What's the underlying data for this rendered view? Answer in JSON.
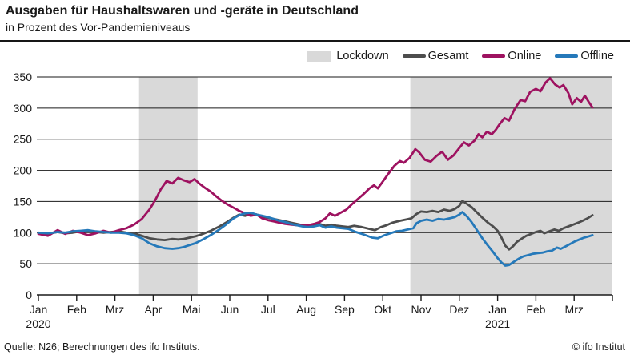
{
  "report": {
    "title": "Ausgaben für Haushaltswaren und -geräte in Deutschland",
    "subtitle": "in Prozent des Vor-Pandemieniveaus",
    "source_left": "Quelle: N26; Berechnungen des ifo Instituts.",
    "source_right": "© ifo Institut"
  },
  "chart_data": {
    "type": "line",
    "title": "Ausgaben für Haushaltswaren und -geräte in Deutschland",
    "ylabel": "Prozent des Vor-Pandemieniveaus",
    "x_unit": "months_since_Jan_2020",
    "x_range_months": [
      0,
      15
    ],
    "grid": "horizontal",
    "legend_position": "top",
    "x_axis": {
      "months": [
        "Jan",
        "Feb",
        "Mrz",
        "Apr",
        "Mai",
        "Jun",
        "Jul",
        "Aug",
        "Sep",
        "Okt",
        "Nov",
        "Dez",
        "Jan",
        "Feb",
        "Mrz"
      ],
      "years": [
        {
          "label": "2020",
          "month_index": 0
        },
        {
          "label": "2021",
          "month_index": 12
        }
      ]
    },
    "y_axis": {
      "min": 0,
      "max": 350,
      "ticks": [
        0,
        50,
        100,
        150,
        200,
        250,
        300,
        350
      ]
    },
    "lockdown": {
      "label": "Lockdown",
      "color": "#d9d9d9",
      "bands": [
        [
          2.63,
          4.16
        ],
        [
          9.72,
          15
        ]
      ]
    },
    "series": [
      {
        "name": "Gesamt",
        "color": "#4d4d4d",
        "points": [
          [
            0.0,
            99
          ],
          [
            0.25,
            98
          ],
          [
            0.5,
            101
          ],
          [
            0.7,
            99
          ],
          [
            0.9,
            100
          ],
          [
            1.1,
            102
          ],
          [
            1.3,
            103
          ],
          [
            1.5,
            101
          ],
          [
            1.7,
            100
          ],
          [
            1.9,
            101
          ],
          [
            2.1,
            102
          ],
          [
            2.3,
            100
          ],
          [
            2.5,
            99
          ],
          [
            2.7,
            95
          ],
          [
            2.9,
            91
          ],
          [
            3.1,
            89
          ],
          [
            3.3,
            88
          ],
          [
            3.5,
            90
          ],
          [
            3.65,
            89
          ],
          [
            3.8,
            90
          ],
          [
            3.95,
            92
          ],
          [
            4.1,
            94
          ],
          [
            4.3,
            98
          ],
          [
            4.5,
            103
          ],
          [
            4.7,
            109
          ],
          [
            4.9,
            116
          ],
          [
            5.1,
            124
          ],
          [
            5.25,
            129
          ],
          [
            5.4,
            127
          ],
          [
            5.55,
            131
          ],
          [
            5.7,
            129
          ],
          [
            5.85,
            126
          ],
          [
            6.0,
            124
          ],
          [
            6.15,
            122
          ],
          [
            6.3,
            120
          ],
          [
            6.45,
            118
          ],
          [
            6.6,
            116
          ],
          [
            6.75,
            114
          ],
          [
            6.9,
            112
          ],
          [
            7.05,
            111
          ],
          [
            7.2,
            112
          ],
          [
            7.35,
            114
          ],
          [
            7.5,
            111
          ],
          [
            7.65,
            113
          ],
          [
            7.8,
            111
          ],
          [
            7.95,
            110
          ],
          [
            8.1,
            109
          ],
          [
            8.25,
            111
          ],
          [
            8.45,
            109
          ],
          [
            8.65,
            106
          ],
          [
            8.8,
            104
          ],
          [
            8.95,
            109
          ],
          [
            9.1,
            112
          ],
          [
            9.25,
            116
          ],
          [
            9.45,
            119
          ],
          [
            9.6,
            121
          ],
          [
            9.75,
            123
          ],
          [
            9.88,
            130
          ],
          [
            10.0,
            134
          ],
          [
            10.15,
            133
          ],
          [
            10.3,
            135
          ],
          [
            10.45,
            133
          ],
          [
            10.6,
            137
          ],
          [
            10.75,
            135
          ],
          [
            10.88,
            138
          ],
          [
            11.0,
            143
          ],
          [
            11.08,
            151
          ],
          [
            11.2,
            146
          ],
          [
            11.32,
            141
          ],
          [
            11.45,
            133
          ],
          [
            11.6,
            124
          ],
          [
            11.75,
            116
          ],
          [
            11.88,
            110
          ],
          [
            12.0,
            103
          ],
          [
            12.1,
            92
          ],
          [
            12.2,
            79
          ],
          [
            12.3,
            73
          ],
          [
            12.4,
            78
          ],
          [
            12.5,
            85
          ],
          [
            12.62,
            90
          ],
          [
            12.75,
            95
          ],
          [
            12.88,
            98
          ],
          [
            13.0,
            101
          ],
          [
            13.12,
            103
          ],
          [
            13.22,
            99
          ],
          [
            13.35,
            102
          ],
          [
            13.48,
            105
          ],
          [
            13.6,
            103
          ],
          [
            13.72,
            107
          ],
          [
            13.85,
            110
          ],
          [
            13.98,
            113
          ],
          [
            14.1,
            116
          ],
          [
            14.22,
            119
          ],
          [
            14.35,
            123
          ],
          [
            14.48,
            128
          ]
        ]
      },
      {
        "name": "Online",
        "color": "#9e1260",
        "points": [
          [
            0.0,
            98
          ],
          [
            0.25,
            95
          ],
          [
            0.5,
            104
          ],
          [
            0.7,
            98
          ],
          [
            0.9,
            103
          ],
          [
            1.1,
            100
          ],
          [
            1.3,
            96
          ],
          [
            1.5,
            99
          ],
          [
            1.7,
            103
          ],
          [
            1.9,
            100
          ],
          [
            2.1,
            104
          ],
          [
            2.3,
            107
          ],
          [
            2.5,
            113
          ],
          [
            2.7,
            122
          ],
          [
            2.9,
            137
          ],
          [
            3.05,
            152
          ],
          [
            3.2,
            170
          ],
          [
            3.35,
            183
          ],
          [
            3.5,
            179
          ],
          [
            3.65,
            188
          ],
          [
            3.8,
            184
          ],
          [
            3.95,
            181
          ],
          [
            4.08,
            186
          ],
          [
            4.2,
            179
          ],
          [
            4.35,
            172
          ],
          [
            4.5,
            166
          ],
          [
            4.65,
            158
          ],
          [
            4.8,
            151
          ],
          [
            4.95,
            145
          ],
          [
            5.1,
            140
          ],
          [
            5.25,
            135
          ],
          [
            5.4,
            131
          ],
          [
            5.55,
            127
          ],
          [
            5.7,
            129
          ],
          [
            5.85,
            123
          ],
          [
            6.0,
            120
          ],
          [
            6.15,
            118
          ],
          [
            6.3,
            116
          ],
          [
            6.45,
            114
          ],
          [
            6.6,
            113
          ],
          [
            6.75,
            112
          ],
          [
            6.9,
            111
          ],
          [
            7.05,
            112
          ],
          [
            7.2,
            114
          ],
          [
            7.35,
            117
          ],
          [
            7.5,
            123
          ],
          [
            7.62,
            131
          ],
          [
            7.75,
            127
          ],
          [
            7.9,
            132
          ],
          [
            8.05,
            137
          ],
          [
            8.2,
            146
          ],
          [
            8.35,
            154
          ],
          [
            8.5,
            162
          ],
          [
            8.65,
            171
          ],
          [
            8.77,
            176
          ],
          [
            8.87,
            171
          ],
          [
            9.0,
            182
          ],
          [
            9.15,
            195
          ],
          [
            9.3,
            207
          ],
          [
            9.45,
            215
          ],
          [
            9.55,
            212
          ],
          [
            9.7,
            220
          ],
          [
            9.85,
            234
          ],
          [
            9.95,
            229
          ],
          [
            10.1,
            217
          ],
          [
            10.25,
            214
          ],
          [
            10.4,
            223
          ],
          [
            10.55,
            230
          ],
          [
            10.7,
            217
          ],
          [
            10.85,
            224
          ],
          [
            11.0,
            236
          ],
          [
            11.12,
            245
          ],
          [
            11.25,
            240
          ],
          [
            11.4,
            248
          ],
          [
            11.5,
            258
          ],
          [
            11.6,
            253
          ],
          [
            11.72,
            262
          ],
          [
            11.85,
            258
          ],
          [
            11.95,
            265
          ],
          [
            12.05,
            274
          ],
          [
            12.18,
            284
          ],
          [
            12.3,
            280
          ],
          [
            12.45,
            299
          ],
          [
            12.6,
            313
          ],
          [
            12.72,
            311
          ],
          [
            12.85,
            326
          ],
          [
            13.0,
            331
          ],
          [
            13.12,
            327
          ],
          [
            13.25,
            341
          ],
          [
            13.37,
            348
          ],
          [
            13.5,
            338
          ],
          [
            13.62,
            333
          ],
          [
            13.72,
            337
          ],
          [
            13.85,
            324
          ],
          [
            13.95,
            306
          ],
          [
            14.07,
            316
          ],
          [
            14.18,
            310
          ],
          [
            14.28,
            320
          ],
          [
            14.38,
            310
          ],
          [
            14.48,
            301
          ]
        ]
      },
      {
        "name": "Offline",
        "color": "#2579ba",
        "points": [
          [
            0.0,
            100
          ],
          [
            0.25,
            99
          ],
          [
            0.5,
            101
          ],
          [
            0.7,
            100
          ],
          [
            0.9,
            102
          ],
          [
            1.1,
            103
          ],
          [
            1.3,
            104
          ],
          [
            1.5,
            102
          ],
          [
            1.7,
            101
          ],
          [
            1.9,
            100
          ],
          [
            2.1,
            100
          ],
          [
            2.3,
            99
          ],
          [
            2.5,
            96
          ],
          [
            2.7,
            91
          ],
          [
            2.9,
            83
          ],
          [
            3.1,
            78
          ],
          [
            3.3,
            75
          ],
          [
            3.5,
            74
          ],
          [
            3.65,
            75
          ],
          [
            3.8,
            77
          ],
          [
            3.95,
            80
          ],
          [
            4.1,
            83
          ],
          [
            4.3,
            89
          ],
          [
            4.5,
            96
          ],
          [
            4.7,
            104
          ],
          [
            4.9,
            113
          ],
          [
            5.1,
            123
          ],
          [
            5.25,
            128
          ],
          [
            5.4,
            131
          ],
          [
            5.55,
            132
          ],
          [
            5.7,
            129
          ],
          [
            5.85,
            127
          ],
          [
            6.0,
            125
          ],
          [
            6.15,
            122
          ],
          [
            6.3,
            119
          ],
          [
            6.45,
            117
          ],
          [
            6.6,
            114
          ],
          [
            6.75,
            112
          ],
          [
            6.9,
            110
          ],
          [
            7.05,
            109
          ],
          [
            7.2,
            110
          ],
          [
            7.35,
            112
          ],
          [
            7.5,
            108
          ],
          [
            7.65,
            110
          ],
          [
            7.8,
            108
          ],
          [
            7.95,
            107
          ],
          [
            8.1,
            106
          ],
          [
            8.3,
            101
          ],
          [
            8.5,
            97
          ],
          [
            8.72,
            92
          ],
          [
            8.87,
            91
          ],
          [
            9.05,
            96
          ],
          [
            9.2,
            99
          ],
          [
            9.35,
            102
          ],
          [
            9.5,
            103
          ],
          [
            9.65,
            105
          ],
          [
            9.8,
            107
          ],
          [
            9.88,
            115
          ],
          [
            10.0,
            119
          ],
          [
            10.15,
            121
          ],
          [
            10.3,
            119
          ],
          [
            10.45,
            122
          ],
          [
            10.6,
            121
          ],
          [
            10.75,
            123
          ],
          [
            10.88,
            125
          ],
          [
            11.0,
            129
          ],
          [
            11.08,
            133
          ],
          [
            11.2,
            126
          ],
          [
            11.32,
            117
          ],
          [
            11.45,
            105
          ],
          [
            11.6,
            91
          ],
          [
            11.75,
            79
          ],
          [
            11.88,
            69
          ],
          [
            12.0,
            59
          ],
          [
            12.1,
            52
          ],
          [
            12.2,
            47
          ],
          [
            12.3,
            48
          ],
          [
            12.42,
            53
          ],
          [
            12.55,
            58
          ],
          [
            12.68,
            62
          ],
          [
            12.8,
            64
          ],
          [
            12.92,
            66
          ],
          [
            13.05,
            67
          ],
          [
            13.18,
            68
          ],
          [
            13.3,
            70
          ],
          [
            13.42,
            71
          ],
          [
            13.55,
            76
          ],
          [
            13.65,
            74
          ],
          [
            13.78,
            78
          ],
          [
            13.9,
            82
          ],
          [
            14.02,
            86
          ],
          [
            14.14,
            89
          ],
          [
            14.26,
            92
          ],
          [
            14.38,
            94
          ],
          [
            14.48,
            96
          ]
        ]
      }
    ]
  }
}
